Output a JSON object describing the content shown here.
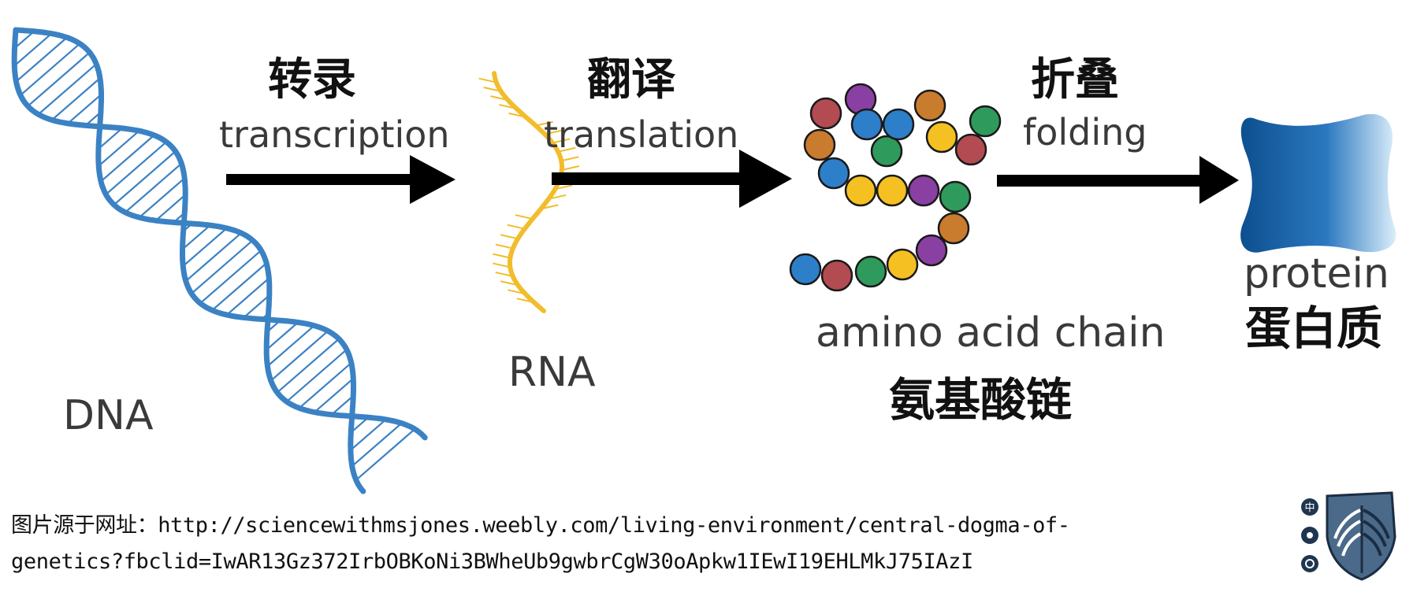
{
  "steps": {
    "transcription": {
      "en": "transcription",
      "zh": "转录"
    },
    "translation": {
      "en": "translation",
      "zh": "翻译"
    },
    "folding": {
      "en": "folding",
      "zh": "折叠"
    }
  },
  "molecules": {
    "dna": {
      "label": "DNA"
    },
    "rna": {
      "label": "RNA"
    },
    "amino_acid_chain": {
      "en": "amino acid chain",
      "zh": "氨基酸链"
    },
    "protein": {
      "en": "protein",
      "zh": "蛋白质"
    }
  },
  "source": {
    "line1": "图片源于网址：http://sciencewithmsjones.weebly.com/living-environment/central-dogma-of-",
    "line2": "genetics?fbclid=IwAR13Gz372IrbOBKoNi3BWheUb9gwbrCgW30oApkw1IEwI19EHLMkJ75IAzI"
  },
  "badge": {
    "top_glyph": "中"
  },
  "colors": {
    "dna": "#3b82c4",
    "rna": "#f2bd2c",
    "protein_dark": "#0d4f8f",
    "protein_light": "#dceefa",
    "arrow": "#000000",
    "bead_blue": "#2d7fc9",
    "bead_red": "#b34b52",
    "bead_green": "#2e9a5c",
    "bead_yellow": "#f5c021",
    "bead_purple": "#8a3fa3",
    "bead_orange": "#c97b2e"
  },
  "icons": [
    "double-helix-icon",
    "single-strand-icon",
    "bead-chain-icon",
    "protein-blob-icon",
    "wings-emblem-icon"
  ]
}
